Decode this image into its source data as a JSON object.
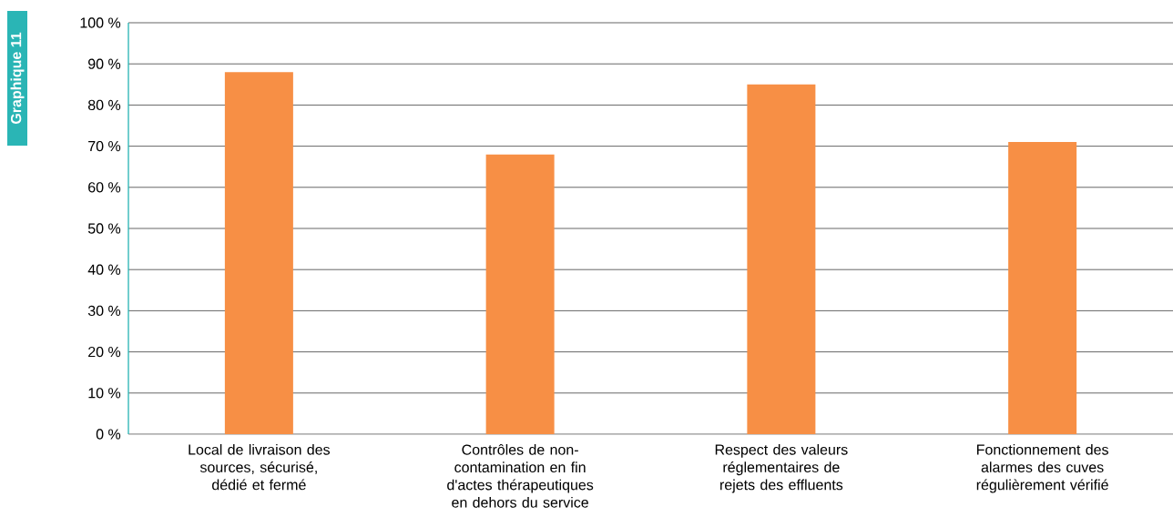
{
  "chart_data": {
    "type": "bar",
    "title": "Graphique 11",
    "categories": [
      "Local de livraison des sources, sécurisé, dédié et fermé",
      "Contrôles de non-contamination en fin d'actes thérapeutiques en dehors du service",
      "Respect des valeurs réglementaires de rejets des effluents",
      "Fonctionnement des alarmes des cuves régulièrement vérifié"
    ],
    "values": [
      88,
      68,
      85,
      71
    ],
    "color": "#f78f45",
    "ylim": [
      0,
      100
    ],
    "yticks": [
      {
        "value": 0,
        "label": "0 %"
      },
      {
        "value": 10,
        "label": "10 %"
      },
      {
        "value": 20,
        "label": "20 %"
      },
      {
        "value": 30,
        "label": "30 %"
      },
      {
        "value": 40,
        "label": "40 %"
      },
      {
        "value": 50,
        "label": "50 %"
      },
      {
        "value": 60,
        "label": "60 %"
      },
      {
        "value": 70,
        "label": "70 %"
      },
      {
        "value": 80,
        "label": "80 %"
      },
      {
        "value": 90,
        "label": "90 %"
      },
      {
        "value": 100,
        "label": "100 %"
      }
    ],
    "grid": "y"
  }
}
